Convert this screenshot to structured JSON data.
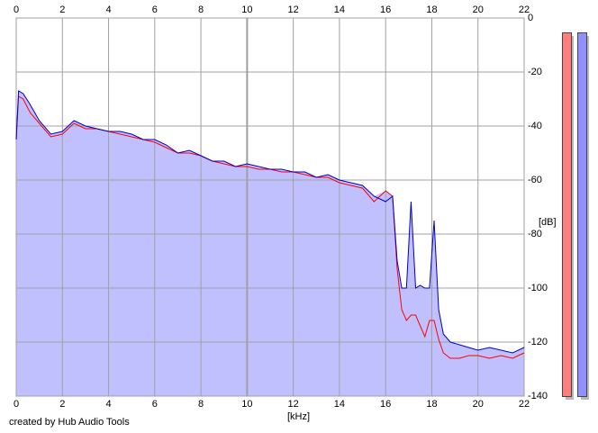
{
  "spectrum": {
    "x_unit_label": "[kHz]",
    "y_unit_label": "[dB]",
    "credit": "created by Hub Audio Tools",
    "x_ticks": [
      "0",
      "2",
      "4",
      "6",
      "8",
      "10",
      "12",
      "14",
      "16",
      "18",
      "20",
      "22"
    ],
    "y_ticks": [
      "0",
      "-20",
      "-40",
      "-60",
      "-80",
      "-100",
      "-120",
      "-140"
    ],
    "colors": {
      "fill": "#c0c0ff",
      "left_channel": "#ff0000",
      "right_channel": "#0000cc",
      "grid": "#a0a0a0",
      "meter_left": "#ff7f7f",
      "meter_right": "#9090ff"
    }
  },
  "chart_data": {
    "type": "area",
    "xlabel": "[kHz]",
    "ylabel": "[dB]",
    "xlim": [
      0,
      22
    ],
    "ylim": [
      -140,
      0
    ],
    "grid": true,
    "series": [
      {
        "x": [
          0,
          0.1,
          0.3,
          0.6,
          1,
          1.5,
          2,
          2.5,
          3,
          3.5,
          4,
          4.5,
          5,
          5.5,
          6,
          6.5,
          7,
          7.5,
          8,
          8.5,
          9,
          9.5,
          10,
          10.5,
          11,
          11.5,
          12,
          12.5,
          13,
          13.5,
          14,
          14.5,
          15,
          15.5,
          16,
          16.3,
          16.5,
          16.7,
          16.9,
          17.1,
          17.3,
          17.5,
          17.7,
          17.9,
          18.1,
          18.3,
          18.5,
          18.8,
          19.2,
          19.6,
          20,
          20.5,
          21,
          21.5,
          22
        ],
        "values": [
          -45,
          -27,
          -28,
          -32,
          -38,
          -43,
          -42,
          -38,
          -40,
          -41,
          -42,
          -42,
          -43,
          -45,
          -45,
          -47,
          -50,
          -49,
          -51,
          -53,
          -53,
          -55,
          -54,
          -55,
          -56,
          -56,
          -57,
          -57,
          -59,
          -58,
          -60,
          -61,
          -62,
          -66,
          -68,
          -66,
          -90,
          -100,
          -100,
          -68,
          -100,
          -99,
          -100,
          -100,
          -75,
          -108,
          -117,
          -120,
          -121,
          -122,
          -123,
          -122,
          -123,
          -124,
          -122
        ]
      },
      {
        "x": [
          0,
          0.1,
          0.3,
          0.6,
          1,
          1.5,
          2,
          2.5,
          3,
          3.5,
          4,
          4.5,
          5,
          5.5,
          6,
          6.5,
          7,
          7.5,
          8,
          8.5,
          9,
          9.5,
          10,
          10.5,
          11,
          11.5,
          12,
          12.5,
          13,
          13.5,
          14,
          14.5,
          15,
          15.5,
          16,
          16.3,
          16.5,
          16.7,
          16.9,
          17.1,
          17.3,
          17.5,
          17.7,
          17.9,
          18.1,
          18.3,
          18.5,
          18.8,
          19.2,
          19.6,
          20,
          20.5,
          21,
          21.5,
          22
        ],
        "values": [
          -45,
          -29,
          -30,
          -35,
          -39,
          -44,
          -43,
          -39,
          -41,
          -41,
          -42,
          -43,
          -44,
          -45,
          -46,
          -48,
          -50,
          -50,
          -51,
          -53,
          -54,
          -55,
          -55,
          -56,
          -56,
          -57,
          -57,
          -58,
          -59,
          -59,
          -61,
          -62,
          -63,
          -68,
          -64,
          -66,
          -93,
          -108,
          -112,
          -110,
          -110,
          -114,
          -118,
          -112,
          -112,
          -119,
          -124,
          -126,
          -126,
          -125,
          -125,
          -126,
          -125,
          -126,
          -124
        ]
      }
    ]
  }
}
